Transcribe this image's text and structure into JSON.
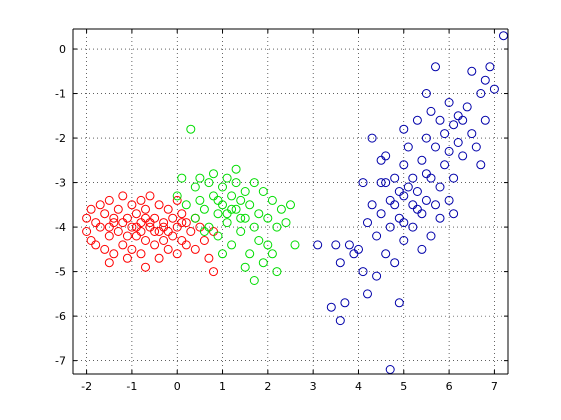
{
  "chart_data": {
    "type": "scatter",
    "title": "",
    "xlabel": "",
    "ylabel": "",
    "xlim": [
      -2.3,
      7.3
    ],
    "ylim": [
      -7.3,
      0.45
    ],
    "grid": true,
    "x_ticks": [
      -2,
      -1,
      0,
      1,
      2,
      3,
      4,
      5,
      6,
      7
    ],
    "y_ticks": [
      0,
      -1,
      -2,
      -3,
      -4,
      -5,
      -6,
      -7
    ],
    "x_tick_labels": [
      "-2",
      "-1",
      "0",
      "1",
      "2",
      "3",
      "4",
      "5",
      "6",
      "7"
    ],
    "y_tick_labels": [
      "0",
      "-1",
      "-2",
      "-3",
      "-4",
      "-5",
      "-6",
      "-7"
    ],
    "marker": "circle-open",
    "series": [
      {
        "color": "#ff0000",
        "points": [
          [
            -2.0,
            -3.8
          ],
          [
            -2.0,
            -4.1
          ],
          [
            -1.9,
            -3.6
          ],
          [
            -1.9,
            -4.3
          ],
          [
            -1.8,
            -3.9
          ],
          [
            -1.8,
            -4.4
          ],
          [
            -1.7,
            -3.5
          ],
          [
            -1.7,
            -4.0
          ],
          [
            -1.6,
            -4.5
          ],
          [
            -1.6,
            -3.7
          ],
          [
            -1.5,
            -4.2
          ],
          [
            -1.5,
            -3.4
          ],
          [
            -1.5,
            -4.8
          ],
          [
            -1.4,
            -3.9
          ],
          [
            -1.4,
            -4.6
          ],
          [
            -1.3,
            -3.6
          ],
          [
            -1.3,
            -4.1
          ],
          [
            -1.2,
            -3.3
          ],
          [
            -1.2,
            -4.4
          ],
          [
            -1.1,
            -3.8
          ],
          [
            -1.1,
            -4.7
          ],
          [
            -1.0,
            -3.5
          ],
          [
            -1.0,
            -4.0
          ],
          [
            -1.0,
            -4.5
          ],
          [
            -0.9,
            -3.7
          ],
          [
            -0.9,
            -4.2
          ],
          [
            -0.8,
            -3.4
          ],
          [
            -0.8,
            -4.6
          ],
          [
            -0.8,
            -3.9
          ],
          [
            -0.7,
            -4.3
          ],
          [
            -0.7,
            -3.6
          ],
          [
            -0.7,
            -4.9
          ],
          [
            -0.6,
            -4.0
          ],
          [
            -0.6,
            -3.3
          ],
          [
            -0.5,
            -4.4
          ],
          [
            -0.5,
            -3.8
          ],
          [
            -0.4,
            -4.1
          ],
          [
            -0.4,
            -3.5
          ],
          [
            -0.4,
            -4.7
          ],
          [
            -0.3,
            -3.9
          ],
          [
            -0.3,
            -4.3
          ],
          [
            -0.2,
            -3.6
          ],
          [
            -0.2,
            -4.5
          ],
          [
            -0.1,
            -3.8
          ],
          [
            -0.1,
            -4.2
          ],
          [
            0.0,
            -3.4
          ],
          [
            0.0,
            -4.6
          ],
          [
            0.0,
            -4.0
          ],
          [
            0.1,
            -3.7
          ],
          [
            0.1,
            -4.3
          ],
          [
            0.2,
            -3.9
          ],
          [
            0.2,
            -4.4
          ],
          [
            0.3,
            -4.1
          ],
          [
            0.4,
            -3.8
          ],
          [
            0.4,
            -4.5
          ],
          [
            0.5,
            -4.0
          ],
          [
            0.6,
            -4.3
          ],
          [
            0.7,
            -4.7
          ],
          [
            0.8,
            -4.1
          ],
          [
            0.8,
            -5.0
          ],
          [
            -1.5,
            -4.0
          ],
          [
            -1.2,
            -3.9
          ],
          [
            -0.9,
            -4.0
          ],
          [
            -0.6,
            -3.9
          ],
          [
            -0.3,
            -4.0
          ],
          [
            -1.1,
            -4.2
          ],
          [
            -0.8,
            -4.1
          ],
          [
            -0.5,
            -4.1
          ],
          [
            -0.2,
            -4.1
          ],
          [
            -1.4,
            -3.8
          ],
          [
            -0.7,
            -3.8
          ],
          [
            0.1,
            -3.9
          ]
        ]
      },
      {
        "color": "#00dd00",
        "points": [
          [
            0.0,
            -3.3
          ],
          [
            0.1,
            -2.9
          ],
          [
            0.2,
            -3.5
          ],
          [
            0.3,
            -1.8
          ],
          [
            0.4,
            -3.1
          ],
          [
            0.4,
            -3.8
          ],
          [
            0.5,
            -2.9
          ],
          [
            0.5,
            -3.4
          ],
          [
            0.6,
            -3.6
          ],
          [
            0.7,
            -3.0
          ],
          [
            0.7,
            -4.0
          ],
          [
            0.8,
            -3.3
          ],
          [
            0.8,
            -2.8
          ],
          [
            0.9,
            -3.7
          ],
          [
            0.9,
            -4.2
          ],
          [
            1.0,
            -3.1
          ],
          [
            1.0,
            -3.5
          ],
          [
            1.1,
            -2.9
          ],
          [
            1.1,
            -3.9
          ],
          [
            1.2,
            -3.3
          ],
          [
            1.2,
            -4.4
          ],
          [
            1.3,
            -3.0
          ],
          [
            1.3,
            -3.6
          ],
          [
            1.3,
            -2.7
          ],
          [
            1.4,
            -3.4
          ],
          [
            1.4,
            -4.1
          ],
          [
            1.5,
            -3.2
          ],
          [
            1.5,
            -3.8
          ],
          [
            1.6,
            -4.6
          ],
          [
            1.6,
            -3.5
          ],
          [
            1.7,
            -3.0
          ],
          [
            1.7,
            -4.0
          ],
          [
            1.8,
            -3.7
          ],
          [
            1.8,
            -4.3
          ],
          [
            1.9,
            -3.2
          ],
          [
            1.9,
            -4.8
          ],
          [
            2.0,
            -3.8
          ],
          [
            2.0,
            -4.4
          ],
          [
            2.1,
            -3.4
          ],
          [
            2.1,
            -4.6
          ],
          [
            2.2,
            -4.0
          ],
          [
            2.3,
            -3.6
          ],
          [
            2.4,
            -3.9
          ],
          [
            2.5,
            -3.5
          ],
          [
            2.6,
            -4.4
          ],
          [
            2.2,
            -5.0
          ],
          [
            1.7,
            -5.2
          ],
          [
            1.5,
            -4.9
          ],
          [
            1.0,
            -4.6
          ],
          [
            0.6,
            -4.1
          ],
          [
            1.1,
            -3.7
          ],
          [
            1.4,
            -3.8
          ],
          [
            0.9,
            -3.4
          ],
          [
            1.2,
            -3.6
          ]
        ]
      },
      {
        "color": "#0000aa",
        "points": [
          [
            3.1,
            -4.4
          ],
          [
            3.4,
            -5.8
          ],
          [
            3.5,
            -4.4
          ],
          [
            3.6,
            -4.8
          ],
          [
            3.6,
            -6.1
          ],
          [
            3.7,
            -5.7
          ],
          [
            3.8,
            -4.4
          ],
          [
            3.9,
            -4.6
          ],
          [
            4.0,
            -4.5
          ],
          [
            4.1,
            -3.0
          ],
          [
            4.1,
            -5.0
          ],
          [
            4.2,
            -5.5
          ],
          [
            4.2,
            -3.9
          ],
          [
            4.3,
            -2.0
          ],
          [
            4.3,
            -3.5
          ],
          [
            4.4,
            -4.2
          ],
          [
            4.4,
            -5.1
          ],
          [
            4.5,
            -2.5
          ],
          [
            4.5,
            -3.0
          ],
          [
            4.5,
            -3.7
          ],
          [
            4.6,
            -2.4
          ],
          [
            4.6,
            -4.6
          ],
          [
            4.7,
            -3.4
          ],
          [
            4.7,
            -4.0
          ],
          [
            4.7,
            -7.2
          ],
          [
            4.8,
            -2.9
          ],
          [
            4.8,
            -4.8
          ],
          [
            4.8,
            -3.5
          ],
          [
            4.9,
            -5.7
          ],
          [
            4.9,
            -3.2
          ],
          [
            5.0,
            -1.8
          ],
          [
            5.0,
            -2.6
          ],
          [
            5.0,
            -3.9
          ],
          [
            5.0,
            -4.3
          ],
          [
            5.1,
            -3.1
          ],
          [
            5.1,
            -2.2
          ],
          [
            5.2,
            -3.5
          ],
          [
            5.2,
            -4.0
          ],
          [
            5.2,
            -2.9
          ],
          [
            5.3,
            -1.6
          ],
          [
            5.3,
            -3.2
          ],
          [
            5.4,
            -2.5
          ],
          [
            5.4,
            -3.7
          ],
          [
            5.4,
            -4.5
          ],
          [
            5.5,
            -1.0
          ],
          [
            5.5,
            -2.0
          ],
          [
            5.5,
            -3.4
          ],
          [
            5.6,
            -1.4
          ],
          [
            5.6,
            -2.9
          ],
          [
            5.6,
            -4.2
          ],
          [
            5.7,
            -0.4
          ],
          [
            5.7,
            -2.2
          ],
          [
            5.8,
            -1.6
          ],
          [
            5.8,
            -3.1
          ],
          [
            5.8,
            -3.8
          ],
          [
            5.9,
            -1.9
          ],
          [
            5.9,
            -2.6
          ],
          [
            6.0,
            -1.2
          ],
          [
            6.0,
            -2.3
          ],
          [
            6.0,
            -3.4
          ],
          [
            6.1,
            -1.7
          ],
          [
            6.1,
            -2.9
          ],
          [
            6.1,
            -3.7
          ],
          [
            6.2,
            -1.5
          ],
          [
            6.2,
            -2.1
          ],
          [
            6.3,
            -2.4
          ],
          [
            6.4,
            -1.3
          ],
          [
            6.5,
            -1.9
          ],
          [
            6.5,
            -0.5
          ],
          [
            6.6,
            -2.2
          ],
          [
            6.7,
            -1.0
          ],
          [
            6.7,
            -2.6
          ],
          [
            6.8,
            -0.7
          ],
          [
            6.8,
            -1.6
          ],
          [
            6.9,
            -0.4
          ],
          [
            7.0,
            -0.9
          ],
          [
            7.2,
            0.3
          ],
          [
            5.3,
            -3.6
          ],
          [
            5.7,
            -3.5
          ],
          [
            5.0,
            -3.3
          ],
          [
            4.9,
            -3.8
          ],
          [
            5.5,
            -2.8
          ],
          [
            4.6,
            -3.0
          ],
          [
            6.3,
            -1.6
          ]
        ]
      }
    ]
  }
}
